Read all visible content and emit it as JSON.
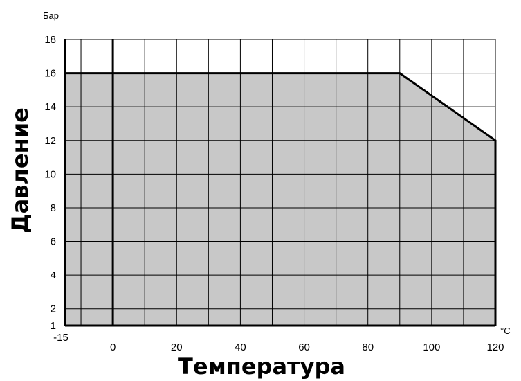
{
  "chart_data": {
    "type": "area",
    "title": "",
    "xlabel": "Температура",
    "ylabel": "Давление",
    "x_unit": "°C",
    "y_unit": "Бар",
    "xlim": [
      -15,
      120
    ],
    "ylim": [
      1,
      18
    ],
    "x_grid": [
      -15,
      -10,
      0,
      10,
      20,
      30,
      40,
      50,
      60,
      70,
      80,
      90,
      100,
      110,
      120
    ],
    "y_grid": [
      1,
      2,
      4,
      6,
      8,
      10,
      12,
      14,
      16,
      18
    ],
    "x_ticks": [
      {
        "value": -15,
        "label": "-15"
      },
      {
        "value": 0,
        "label": "0"
      },
      {
        "value": 20,
        "label": "20"
      },
      {
        "value": 40,
        "label": "40"
      },
      {
        "value": 60,
        "label": "60"
      },
      {
        "value": 80,
        "label": "80"
      },
      {
        "value": 100,
        "label": "100"
      },
      {
        "value": 120,
        "label": "120"
      }
    ],
    "y_ticks": [
      {
        "value": 1,
        "label": "1"
      },
      {
        "value": 2,
        "label": "2"
      },
      {
        "value": 4,
        "label": "4"
      },
      {
        "value": 6,
        "label": "6"
      },
      {
        "value": 8,
        "label": "8"
      },
      {
        "value": 10,
        "label": "10"
      },
      {
        "value": 12,
        "label": "12"
      },
      {
        "value": 14,
        "label": "14"
      },
      {
        "value": 16,
        "label": "16"
      },
      {
        "value": 18,
        "label": "18"
      }
    ],
    "series": [
      {
        "x": [
          -15,
          90,
          120,
          120
        ],
        "y": [
          16,
          16,
          12,
          1
        ]
      }
    ],
    "reference_line_x": 0,
    "grid": true,
    "fill_color": "#c8c8c8",
    "line_color": "#000000",
    "grid_color": "#000000"
  }
}
